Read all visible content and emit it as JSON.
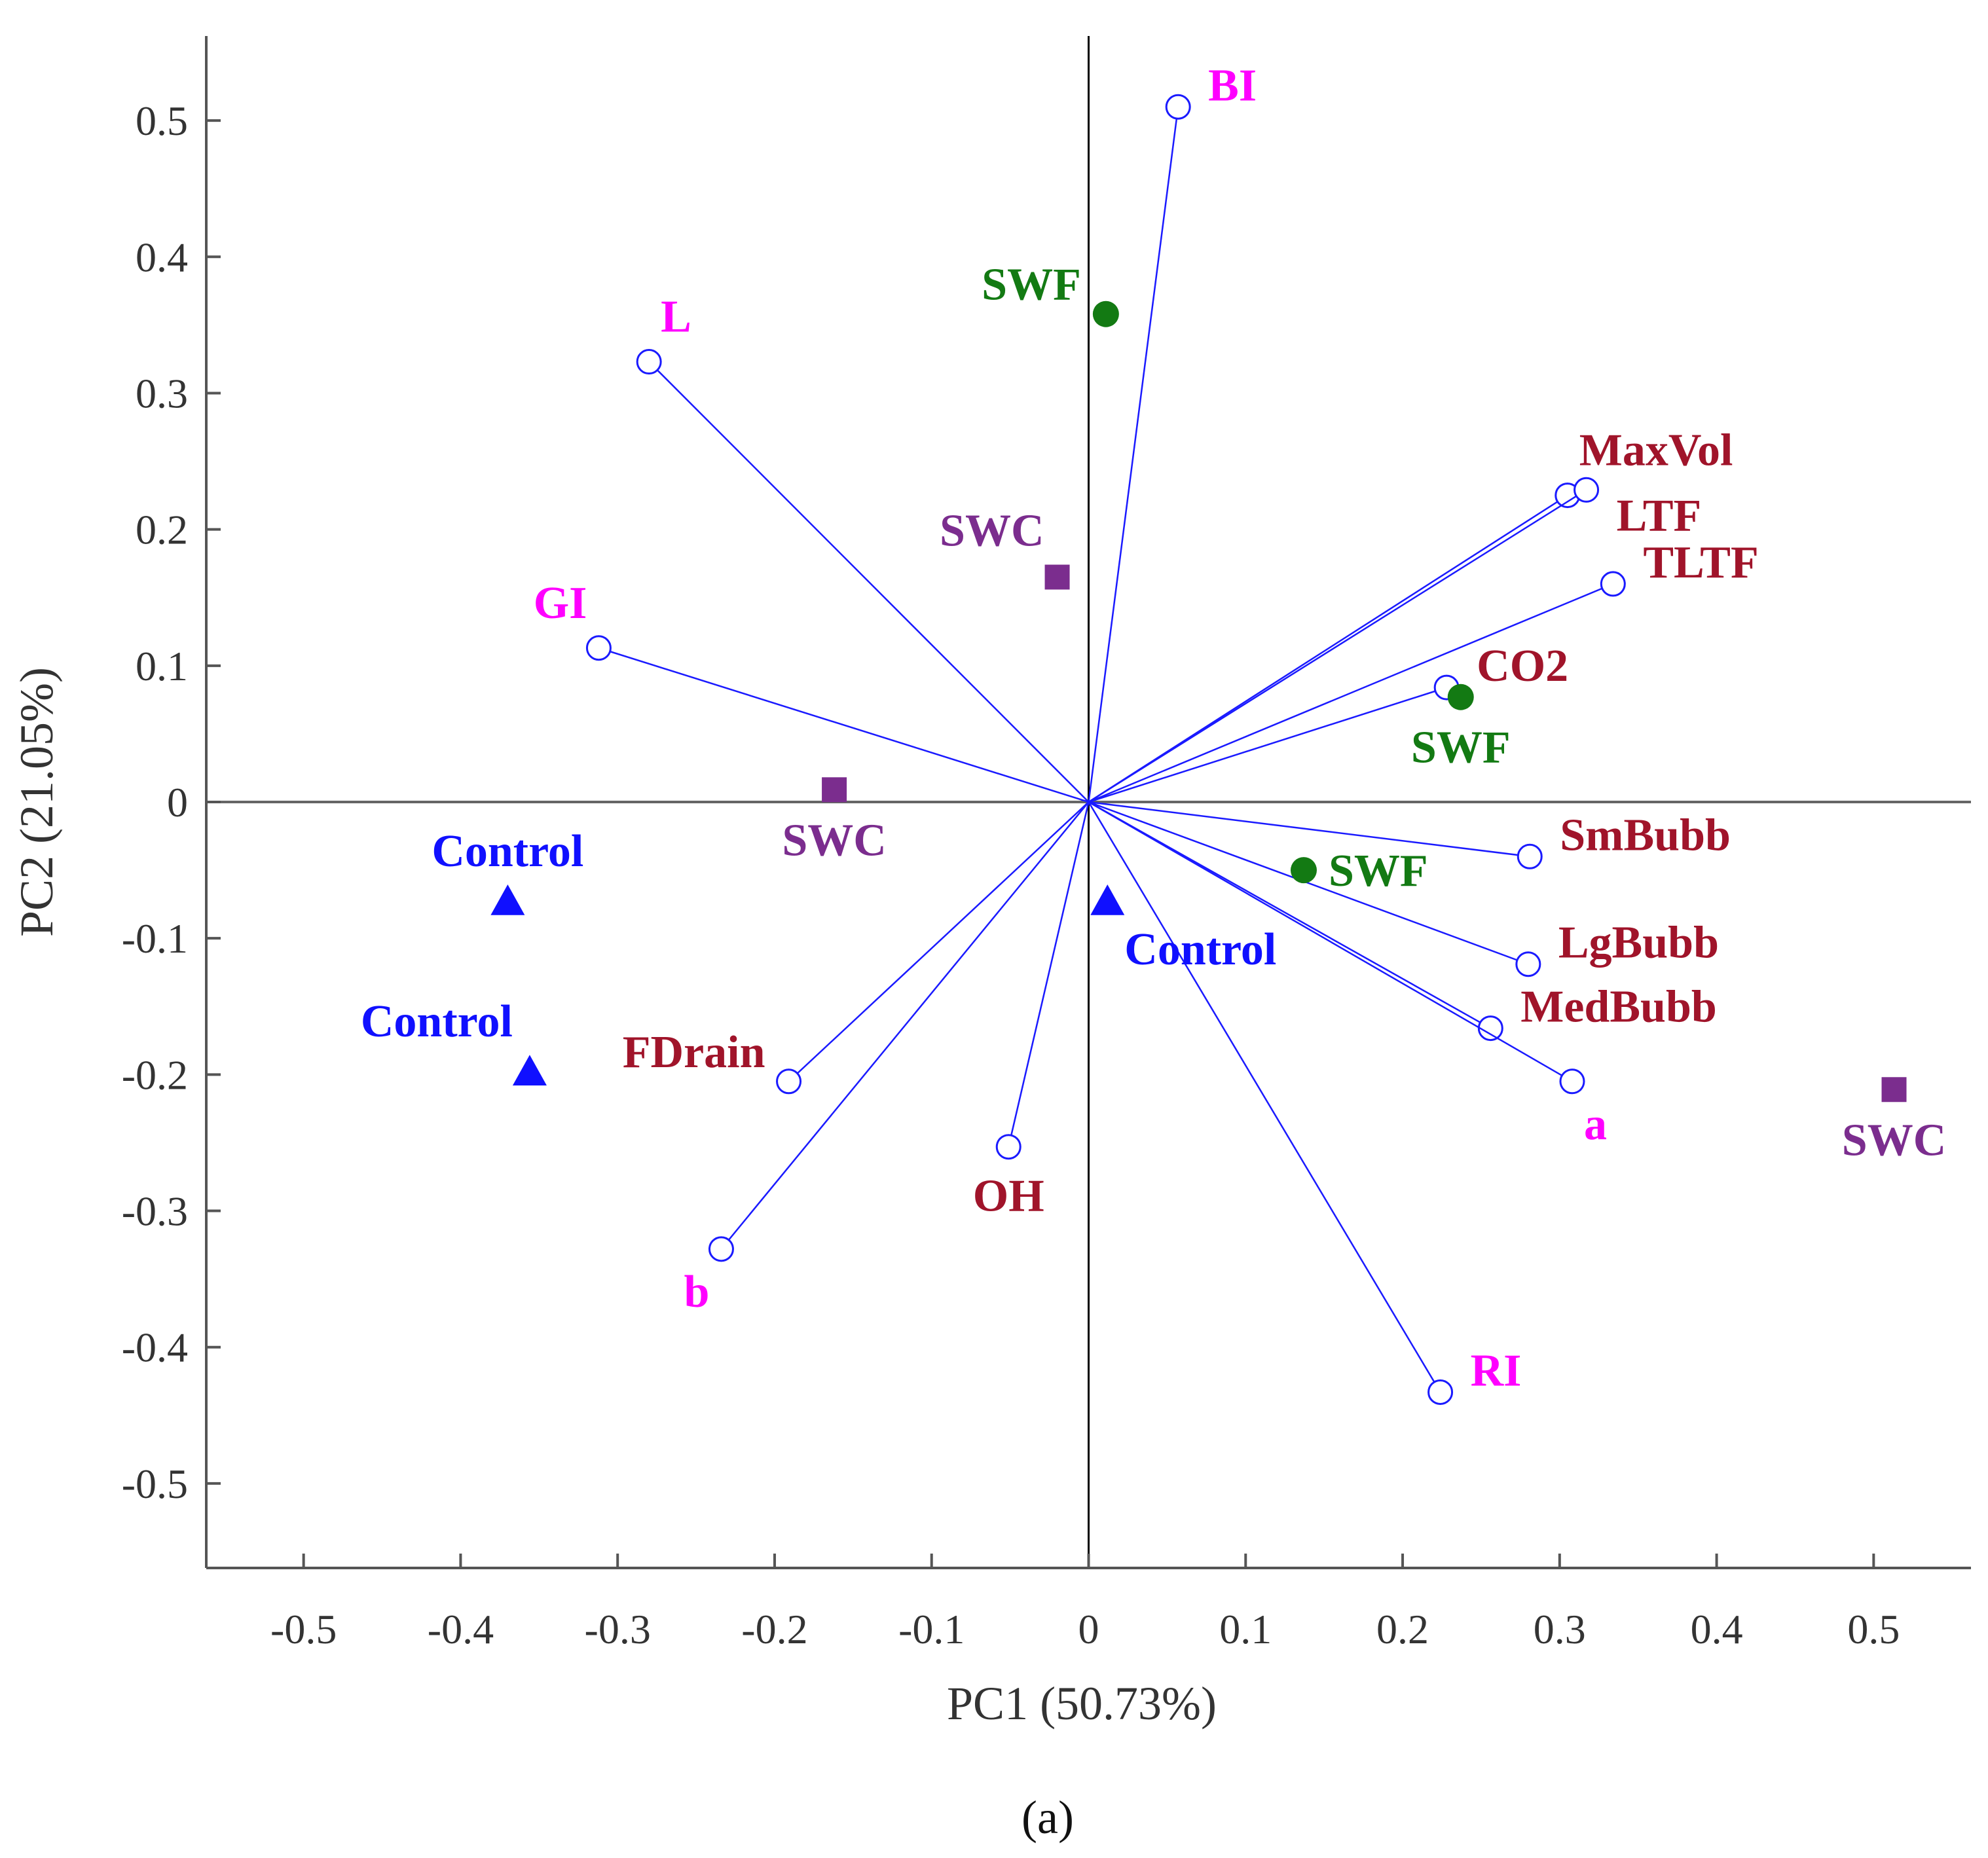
{
  "chart_data": {
    "type": "scatter",
    "subtype": "pca-biplot",
    "title": "",
    "panel_label": "(a)",
    "xlabel": "PC1 (50.73%)",
    "ylabel": "PC2 (21.05%)",
    "xlim": [
      -0.562,
      0.562
    ],
    "ylim": [
      -0.562,
      0.562
    ],
    "xticks": [
      -0.5,
      -0.4,
      -0.3,
      -0.2,
      -0.1,
      0,
      0.1,
      0.2,
      0.3,
      0.4,
      0.5
    ],
    "yticks": [
      0.5,
      0.4,
      0.3,
      0.2,
      0.1,
      0,
      -0.1,
      -0.2,
      -0.3,
      -0.4,
      -0.5
    ],
    "xtick_labels": [
      "-0.5",
      "-0.4",
      "-0.3",
      "-0.2",
      "-0.1",
      "0",
      "0.1",
      "0.2",
      "0.3",
      "0.4",
      "0.5"
    ],
    "ytick_labels": [
      "0.5",
      "0.4",
      "0.3",
      "0.2",
      "0.1",
      "0",
      "-0.1",
      "-0.2",
      "-0.3",
      "-0.4",
      "-0.5"
    ],
    "grid": false,
    "colors": {
      "loading_line": "#1a1aff",
      "loading_marker": "#1a1aff",
      "axis": "#555555",
      "zero_line_x": "#666666",
      "zero_line_y": "#000000",
      "pink": "#ff00ff",
      "darkred": "#a0142a",
      "control": "#1010ff",
      "swf": "#137a13",
      "swc": "#7b2d8e"
    },
    "loadings": [
      {
        "label": "BI",
        "x": 0.057,
        "y": 0.51,
        "color": "#ff00ff",
        "label_pos": "right-top"
      },
      {
        "label": "L",
        "x": -0.28,
        "y": 0.323,
        "color": "#ff00ff",
        "label_pos": "top-right"
      },
      {
        "label": "GI",
        "x": -0.312,
        "y": 0.113,
        "color": "#ff00ff",
        "label_pos": "top-left"
      },
      {
        "label": "MaxVol",
        "x": 0.305,
        "y": 0.225,
        "color": "#a0142a",
        "label_pos": "top-right"
      },
      {
        "label": "LTF",
        "x": 0.317,
        "y": 0.229,
        "color": "#a0142a",
        "label_pos": "right-bottom"
      },
      {
        "label": "TLTF",
        "x": 0.334,
        "y": 0.16,
        "color": "#a0142a",
        "label_pos": "right-top"
      },
      {
        "label": "CO2",
        "x": 0.228,
        "y": 0.084,
        "color": "#a0142a",
        "label_pos": "right-top"
      },
      {
        "label": "SmBubb",
        "x": 0.281,
        "y": -0.04,
        "color": "#a0142a",
        "label_pos": "right-top"
      },
      {
        "label": "LgBubb",
        "x": 0.28,
        "y": -0.119,
        "color": "#a0142a",
        "label_pos": "right-top"
      },
      {
        "label": "MedBubb",
        "x": 0.256,
        "y": -0.166,
        "color": "#a0142a",
        "label_pos": "right-top"
      },
      {
        "label": "a",
        "x": 0.308,
        "y": -0.205,
        "color": "#ff00ff",
        "label_pos": "bottom-right"
      },
      {
        "label": "RI",
        "x": 0.224,
        "y": -0.433,
        "color": "#ff00ff",
        "label_pos": "right-top"
      },
      {
        "label": "OH",
        "x": -0.051,
        "y": -0.253,
        "color": "#a0142a",
        "label_pos": "bottom"
      },
      {
        "label": "FDrain",
        "x": -0.191,
        "y": -0.205,
        "color": "#a0142a",
        "label_pos": "left-top"
      },
      {
        "label": "b",
        "x": -0.234,
        "y": -0.328,
        "color": "#ff00ff",
        "label_pos": "bottom-left"
      }
    ],
    "observations": [
      {
        "group": "SWF",
        "marker": "circle",
        "x": 0.011,
        "y": 0.358,
        "color": "#137a13",
        "label_pos": "left-top"
      },
      {
        "group": "SWF",
        "marker": "circle",
        "x": 0.237,
        "y": 0.077,
        "color": "#137a13",
        "label_pos": "bottom"
      },
      {
        "group": "SWF",
        "marker": "circle",
        "x": 0.137,
        "y": -0.05,
        "color": "#137a13",
        "label_pos": "right"
      },
      {
        "group": "SWC",
        "marker": "square",
        "x": -0.02,
        "y": 0.165,
        "color": "#7b2d8e",
        "label_pos": "top-left"
      },
      {
        "group": "SWC",
        "marker": "square",
        "x": -0.162,
        "y": 0.009,
        "color": "#7b2d8e",
        "label_pos": "bottom"
      },
      {
        "group": "SWC",
        "marker": "square",
        "x": 0.513,
        "y": -0.211,
        "color": "#7b2d8e",
        "label_pos": "bottom"
      },
      {
        "group": "Control",
        "marker": "triangle",
        "x": -0.37,
        "y": -0.073,
        "color": "#1010ff",
        "label_pos": "top"
      },
      {
        "group": "Control",
        "marker": "triangle",
        "x": -0.356,
        "y": -0.198,
        "color": "#1010ff",
        "label_pos": "top-left"
      },
      {
        "group": "Control",
        "marker": "triangle",
        "x": 0.012,
        "y": -0.073,
        "color": "#1010ff",
        "label_pos": "bottom-right"
      }
    ]
  }
}
